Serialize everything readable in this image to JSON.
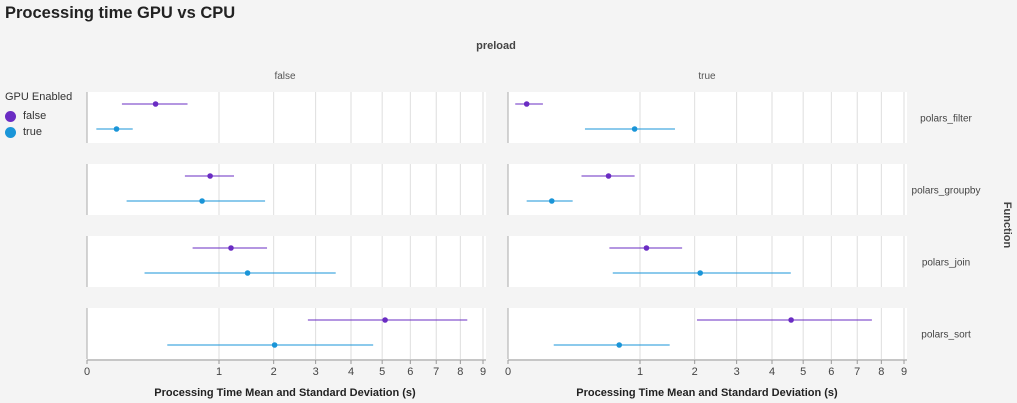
{
  "chart_data": {
    "type": "errorbar",
    "title": "Processing time GPU vs CPU",
    "column_facet_title": "preload",
    "column_facets": [
      "false",
      "true"
    ],
    "row_facet_title": "Function",
    "row_facets": [
      "polars_filter",
      "polars_groupby",
      "polars_join",
      "polars_sort"
    ],
    "xlabel": "Processing Time Mean and Standard Deviation (s)",
    "x_scale": "sqrt",
    "xlim": [
      0,
      9
    ],
    "xticks": [
      0,
      1,
      2,
      3,
      4,
      5,
      6,
      7,
      8,
      9
    ],
    "grid": true,
    "legend": {
      "title": "GPU Enabled",
      "position": "left",
      "entries": [
        {
          "label": "false",
          "color": "#6a2cc3"
        },
        {
          "label": "true",
          "color": "#1a95d8"
        }
      ]
    },
    "series": [
      {
        "gpu": "false",
        "color": "#6a2cc3",
        "points": [
          {
            "preload": "false",
            "function": "polars_filter",
            "mean": 0.27,
            "low": 0.07,
            "high": 0.58
          },
          {
            "preload": "false",
            "function": "polars_groupby",
            "mean": 0.87,
            "low": 0.55,
            "high": 1.24
          },
          {
            "preload": "false",
            "function": "polars_join",
            "mean": 1.19,
            "low": 0.64,
            "high": 1.86
          },
          {
            "preload": "false",
            "function": "polars_sort",
            "mean": 5.1,
            "low": 2.8,
            "high": 8.3
          },
          {
            "preload": "true",
            "function": "polars_filter",
            "mean": 0.02,
            "low": 0.003,
            "high": 0.07
          },
          {
            "preload": "true",
            "function": "polars_groupby",
            "mean": 0.58,
            "low": 0.31,
            "high": 0.92
          },
          {
            "preload": "true",
            "function": "polars_join",
            "mean": 1.1,
            "low": 0.59,
            "high": 1.74
          },
          {
            "preload": "true",
            "function": "polars_sort",
            "mean": 4.6,
            "low": 2.05,
            "high": 7.6
          }
        ]
      },
      {
        "gpu": "true",
        "color": "#1a95d8",
        "points": [
          {
            "preload": "false",
            "function": "polars_filter",
            "mean": 0.05,
            "low": 0.005,
            "high": 0.12
          },
          {
            "preload": "false",
            "function": "polars_groupby",
            "mean": 0.76,
            "low": 0.09,
            "high": 1.82
          },
          {
            "preload": "false",
            "function": "polars_join",
            "mean": 1.48,
            "low": 0.19,
            "high": 3.55
          },
          {
            "preload": "false",
            "function": "polars_sort",
            "mean": 2.02,
            "low": 0.37,
            "high": 4.7
          },
          {
            "preload": "true",
            "function": "polars_filter",
            "mean": 0.92,
            "low": 0.34,
            "high": 1.6
          },
          {
            "preload": "true",
            "function": "polars_groupby",
            "mean": 0.11,
            "low": 0.02,
            "high": 0.24
          },
          {
            "preload": "true",
            "function": "polars_join",
            "mean": 2.12,
            "low": 0.63,
            "high": 4.59
          },
          {
            "preload": "true",
            "function": "polars_sort",
            "mean": 0.71,
            "low": 0.12,
            "high": 1.5
          }
        ]
      }
    ]
  }
}
